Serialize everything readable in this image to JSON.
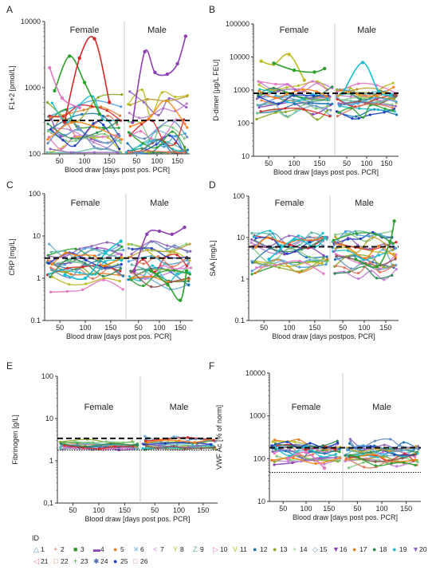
{
  "panels": [
    {
      "letter": "A",
      "ylabel": "F1+2 [pmol/L]",
      "xlabel": "Blood draw [days post pos. PCR]",
      "groups": [
        "Female",
        "Male"
      ],
      "yticks": [
        "100",
        "1000",
        "10000"
      ],
      "ytick_values": [
        100,
        1000,
        10000
      ],
      "ylim": [
        100,
        10000
      ],
      "xticks": [
        "50",
        "100",
        "150"
      ],
      "xtick_values": [
        50,
        100,
        150
      ],
      "xlim": [
        20,
        180
      ],
      "thresholds": [
        {
          "style": "dashed",
          "value": 320
        }
      ],
      "series_hi": [
        {
          "color": "#2ca02c",
          "x": [
            40,
            70,
            100,
            130
          ],
          "y": [
            900,
            3000,
            1200,
            400
          ]
        },
        {
          "color": "#d62728",
          "x": [
            60,
            90,
            120,
            150
          ],
          "y": [
            300,
            2800,
            5500,
            600
          ]
        },
        {
          "color": "#e377c2",
          "x": [
            30,
            55,
            90
          ],
          "y": [
            2000,
            700,
            500
          ]
        },
        {
          "color": "#8c3fb3",
          "x": [
            40,
            70,
            95,
            125,
            150,
            170
          ],
          "y": [
            300,
            3500,
            1700,
            1600,
            2300,
            6000
          ],
          "group": 1
        }
      ]
    },
    {
      "letter": "B",
      "ylabel": "D-dimer [µg/L FEU]",
      "xlabel": "Blood draw [days post pos. PCR]",
      "groups": [
        "Female",
        "Male"
      ],
      "yticks": [
        "10",
        "100",
        "1000",
        "10000",
        "100000"
      ],
      "ytick_values": [
        10,
        100,
        1000,
        10000,
        100000
      ],
      "ylim": [
        10,
        100000
      ],
      "xticks": [
        "50",
        "100",
        "150"
      ],
      "xtick_values": [
        50,
        100,
        150
      ],
      "xlim": [
        20,
        180
      ],
      "thresholds": [
        {
          "style": "dashed",
          "value": 800
        }
      ],
      "series_hi": [
        {
          "color": "#bcbd22",
          "x": [
            35,
            60,
            90,
            120
          ],
          "y": [
            7500,
            6000,
            12000,
            2000
          ]
        },
        {
          "color": "#2ca02c",
          "x": [
            60,
            100,
            140,
            160
          ],
          "y": [
            6500,
            4000,
            3500,
            4500
          ]
        },
        {
          "color": "#17becf",
          "x": [
            40,
            90,
            130,
            160
          ],
          "y": [
            800,
            6800,
            900,
            700
          ],
          "group": 1
        }
      ]
    },
    {
      "letter": "C",
      "ylabel": "CRP [mg/L]",
      "xlabel": "Blood draw [days post pos. PCR]",
      "groups": [
        "Female",
        "Male"
      ],
      "yticks": [
        "0.1",
        "1",
        "10",
        "100"
      ],
      "ytick_values": [
        0.1,
        1,
        10,
        100
      ],
      "ylim": [
        0.1,
        100
      ],
      "xticks": [
        "50",
        "100",
        "150"
      ],
      "xtick_values": [
        50,
        100,
        150
      ],
      "xlim": [
        20,
        180
      ],
      "thresholds": [
        {
          "style": "dashed",
          "value": 3
        }
      ],
      "series_hi": [
        {
          "color": "#17becf",
          "x": [
            60,
            100,
            140,
            170
          ],
          "y": [
            1.2,
            1.0,
            4.0,
            7.5
          ]
        },
        {
          "color": "#8c3fb3",
          "x": [
            40,
            70,
            100,
            130,
            160
          ],
          "y": [
            1.5,
            11,
            13,
            11,
            16
          ],
          "group": 1
        },
        {
          "color": "#2ca02c",
          "x": [
            80,
            120,
            150,
            165
          ],
          "y": [
            1.5,
            0.7,
            0.3,
            1.5
          ],
          "group": 1
        }
      ]
    },
    {
      "letter": "D",
      "ylabel": "SAA [mg/L]",
      "xlabel": "Blood draw [days postpos. PCR]",
      "groups": [
        "Female",
        "Male"
      ],
      "yticks": [
        "0.1",
        "1",
        "10",
        "100"
      ],
      "ytick_values": [
        0.1,
        1,
        10,
        100
      ],
      "ylim": [
        0.1,
        100
      ],
      "xticks": [
        "50",
        "100",
        "150"
      ],
      "xtick_values": [
        50,
        100,
        150
      ],
      "xlim": [
        20,
        180
      ],
      "thresholds": [
        {
          "style": "dashed",
          "value": 6
        }
      ],
      "series_hi": [
        {
          "color": "#17becf",
          "x": [
            60,
            110,
            150,
            170
          ],
          "y": [
            3,
            9,
            6,
            10
          ]
        },
        {
          "color": "#2ca02c",
          "x": [
            80,
            130,
            160,
            170
          ],
          "y": [
            3,
            2,
            8,
            25
          ],
          "group": 1
        }
      ]
    },
    {
      "letter": "E",
      "ylabel": "Fibrinogen [g/L]",
      "xlabel": "Blood draw [days post pos. PCR]",
      "groups": [
        "Female",
        "Male"
      ],
      "yticks": [
        "0,1",
        "1",
        "10",
        "100"
      ],
      "ytick_values": [
        0.1,
        1,
        10,
        100
      ],
      "ylim": [
        0.1,
        100
      ],
      "xticks": [
        "50",
        "100",
        "150"
      ],
      "xtick_values": [
        50,
        100,
        150
      ],
      "xlim": [
        20,
        180
      ],
      "thresholds": [
        {
          "style": "dashed",
          "value": 3.4
        },
        {
          "style": "dotted",
          "value": 1.8
        }
      ],
      "series_hi": []
    },
    {
      "letter": "F",
      "ylabel": "VWF Ac [% of norm]",
      "xlabel": "Blood draw [days post pos. PCR]",
      "groups": [
        "Female",
        "Male"
      ],
      "yticks": [
        "10",
        "100",
        "1000",
        "10000"
      ],
      "ytick_values": [
        10,
        100,
        1000,
        10000
      ],
      "ylim": [
        10,
        10000
      ],
      "xticks": [
        "50",
        "100",
        "150"
      ],
      "xtick_values": [
        50,
        100,
        150
      ],
      "xlim": [
        20,
        180
      ],
      "thresholds": [
        {
          "style": "dashed",
          "value": 180
        },
        {
          "style": "dotted",
          "value": 48
        }
      ],
      "series_hi": [
        {
          "color": "#e377c2",
          "x": [
            60,
            100,
            140
          ],
          "y": [
            100,
            140,
            60
          ]
        }
      ]
    }
  ],
  "legend": {
    "title": "ID",
    "items": [
      {
        "label": "1",
        "color": "#4c9ed9",
        "marker": "△"
      },
      {
        "label": "2",
        "color": "#e07a5f",
        "marker": "+"
      },
      {
        "label": "3",
        "color": "#2ca02c",
        "marker": "■"
      },
      {
        "label": "4",
        "color": "#8c3fb3",
        "marker": "▬"
      },
      {
        "label": "5",
        "color": "#e0802a",
        "marker": "●"
      },
      {
        "label": "6",
        "color": "#6baed6",
        "marker": "✕"
      },
      {
        "label": "7",
        "color": "#c080d0",
        "marker": "<"
      },
      {
        "label": "8",
        "color": "#bcbd22",
        "marker": "Y"
      },
      {
        "label": "9",
        "color": "#5fb8a8",
        "marker": "Z"
      },
      {
        "label": "10",
        "color": "#e377c2",
        "marker": "▷"
      },
      {
        "label": "11",
        "color": "#bcbd22",
        "marker": "V"
      },
      {
        "label": "12",
        "color": "#1f77b4",
        "marker": "●"
      },
      {
        "label": "13",
        "color": "#8ba82a",
        "marker": "●"
      },
      {
        "label": "14",
        "color": "#7fc97f",
        "marker": "+"
      },
      {
        "label": "15",
        "color": "#6b8fc0",
        "marker": "◇"
      },
      {
        "label": "16",
        "color": "#8c3fb3",
        "marker": "▼"
      },
      {
        "label": "17",
        "color": "#e0802a",
        "marker": "●"
      },
      {
        "label": "18",
        "color": "#2e8b57",
        "marker": "●"
      },
      {
        "label": "19",
        "color": "#17becf",
        "marker": "●"
      },
      {
        "label": "20",
        "color": "#9467bd",
        "marker": "▼"
      },
      {
        "label": "21",
        "color": "#e377c2",
        "marker": "◁"
      },
      {
        "label": "22",
        "color": "#e07a5f",
        "marker": "□"
      },
      {
        "label": "23",
        "color": "#2ca02c",
        "marker": "+"
      },
      {
        "label": "24",
        "color": "#4a6fa5",
        "marker": "✱"
      },
      {
        "label": "25",
        "color": "#1f3fbf",
        "marker": "●"
      },
      {
        "label": "26",
        "color": "#e377c2",
        "marker": "□"
      }
    ]
  },
  "chart_data": [
    {
      "type": "line",
      "panel": "A",
      "title": "",
      "ylabel": "F1+2 [pmol/L]",
      "xlabel": "Blood draw [days post pos. PCR]",
      "yscale": "log",
      "ylim": [
        100,
        10000
      ],
      "groups": [
        "Female",
        "Male"
      ],
      "reference_lines": [
        320
      ]
    },
    {
      "type": "line",
      "panel": "B",
      "title": "",
      "ylabel": "D-dimer [µg/L FEU]",
      "xlabel": "Blood draw [days post pos. PCR]",
      "yscale": "log",
      "ylim": [
        10,
        100000
      ],
      "groups": [
        "Female",
        "Male"
      ],
      "reference_lines": [
        800
      ]
    },
    {
      "type": "line",
      "panel": "C",
      "title": "",
      "ylabel": "CRP [mg/L]",
      "xlabel": "Blood draw [days post pos. PCR]",
      "yscale": "log",
      "ylim": [
        0.1,
        100
      ],
      "groups": [
        "Female",
        "Male"
      ],
      "reference_lines": [
        3
      ]
    },
    {
      "type": "line",
      "panel": "D",
      "title": "",
      "ylabel": "SAA [mg/L]",
      "xlabel": "Blood draw [days postpos. PCR]",
      "yscale": "log",
      "ylim": [
        0.1,
        100
      ],
      "groups": [
        "Female",
        "Male"
      ],
      "reference_lines": [
        6
      ]
    },
    {
      "type": "line",
      "panel": "E",
      "title": "",
      "ylabel": "Fibrinogen [g/L]",
      "xlabel": "Blood draw [days post pos. PCR]",
      "yscale": "log",
      "ylim": [
        0.1,
        100
      ],
      "groups": [
        "Female",
        "Male"
      ],
      "reference_lines": [
        3.4,
        1.8
      ]
    },
    {
      "type": "line",
      "panel": "F",
      "title": "",
      "ylabel": "VWF Ac [% of norm]",
      "xlabel": "Blood draw [days post pos. PCR]",
      "yscale": "log",
      "ylim": [
        10,
        10000
      ],
      "groups": [
        "Female",
        "Male"
      ],
      "reference_lines": [
        180,
        48
      ]
    }
  ]
}
